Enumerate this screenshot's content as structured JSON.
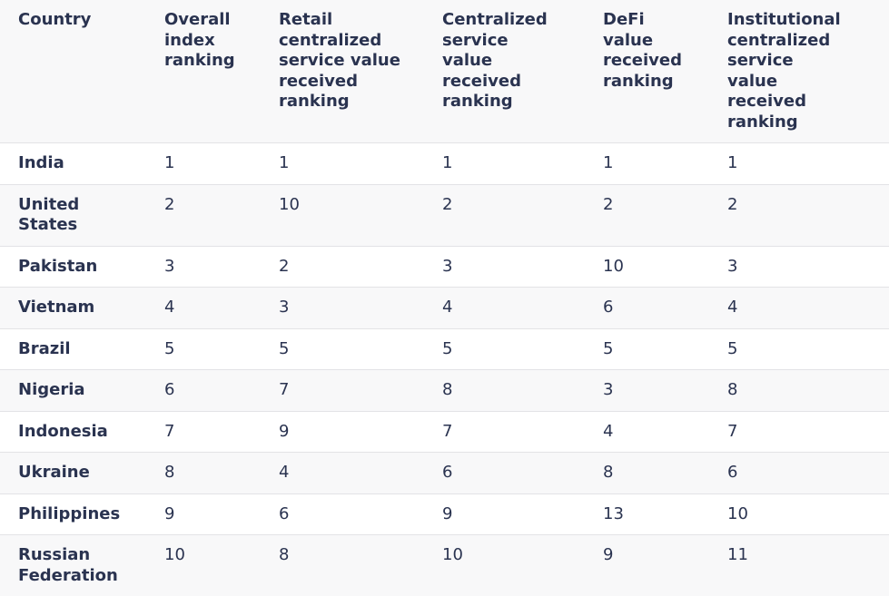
{
  "table": {
    "header": [
      "Country",
      "Overall index ranking",
      "Retail centralized service value received ranking",
      "Centralized service value received ranking",
      "DeFi value received ranking",
      "Institutional centralized service value received ranking"
    ],
    "rows": [
      [
        "India",
        1,
        1,
        1,
        1,
        1
      ],
      [
        "United States",
        2,
        10,
        2,
        2,
        2
      ],
      [
        "Pakistan",
        3,
        2,
        3,
        10,
        3
      ],
      [
        "Vietnam",
        4,
        3,
        4,
        6,
        4
      ],
      [
        "Brazil",
        5,
        5,
        5,
        5,
        5
      ],
      [
        "Nigeria",
        6,
        7,
        8,
        3,
        8
      ],
      [
        "Indonesia",
        7,
        9,
        7,
        4,
        7
      ],
      [
        "Ukraine",
        8,
        4,
        6,
        8,
        6
      ],
      [
        "Philippines",
        9,
        6,
        9,
        13,
        10
      ],
      [
        "Russian Federation",
        10,
        8,
        10,
        9,
        11
      ]
    ]
  }
}
